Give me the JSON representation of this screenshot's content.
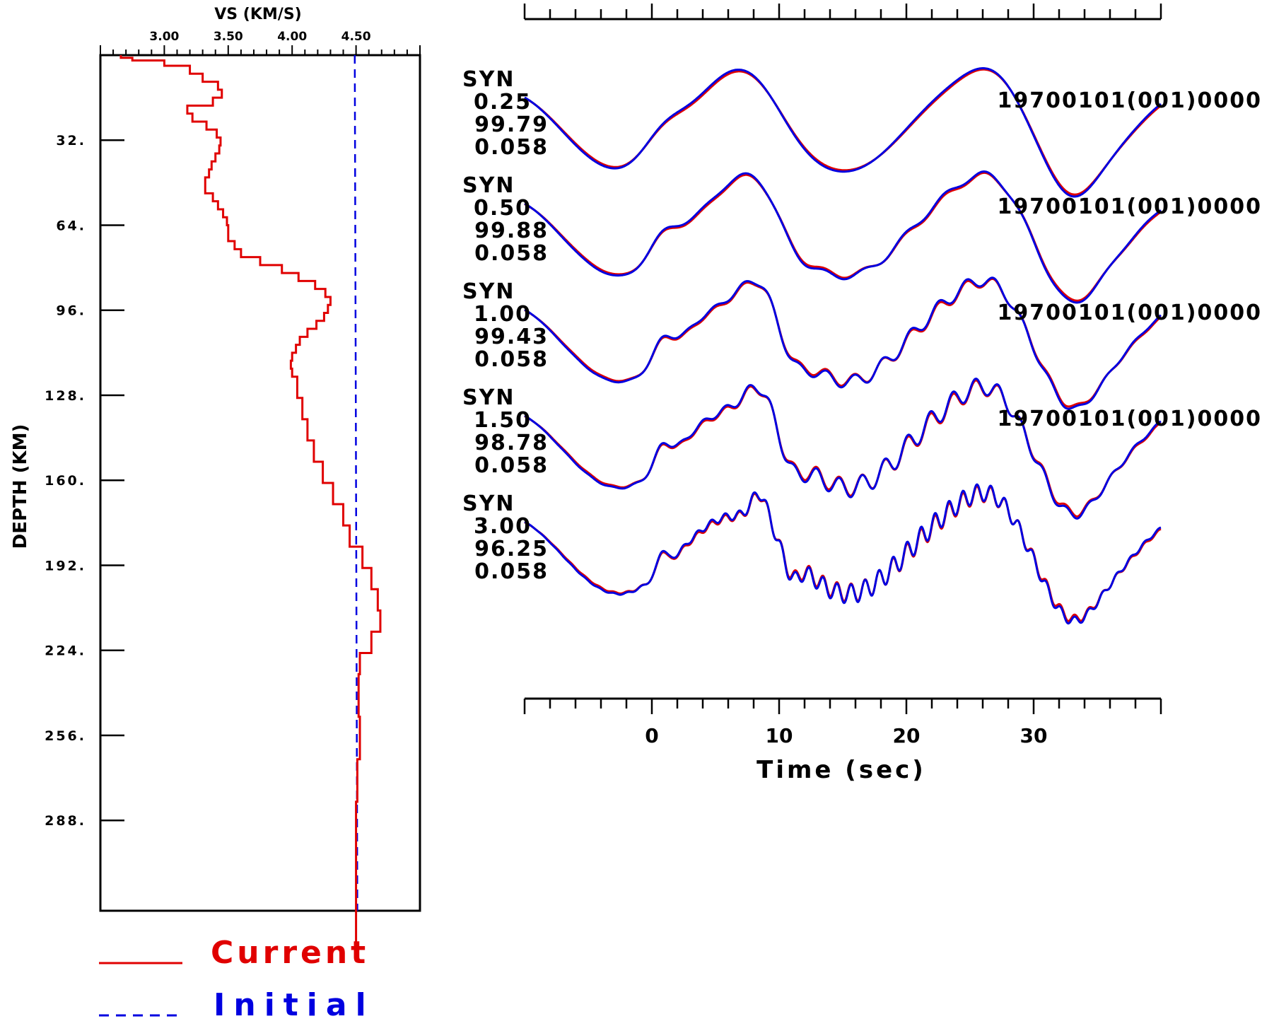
{
  "chart_data": [
    {
      "type": "line",
      "panel": "velocity-profile",
      "xlabel": "VS (KM/S)",
      "ylabel": "DEPTH (KM)",
      "xlim": [
        2.5,
        5.0
      ],
      "ylim": [
        322,
        0
      ],
      "x_ticks": [
        "3.00",
        "3.50",
        "4.00",
        "4.50"
      ],
      "x_tick_values": [
        3.0,
        3.5,
        4.0,
        4.5
      ],
      "y_ticks": [
        "32.",
        "64.",
        "96.",
        "128.",
        "160.",
        "192.",
        "224.",
        "256.",
        "288."
      ],
      "y_tick_values": [
        32,
        64,
        96,
        128,
        160,
        192,
        224,
        256,
        288
      ],
      "legend": [
        "Current",
        "Initial"
      ],
      "legend_position": "bottom-left",
      "colors": {
        "current": "#e00000",
        "initial": "#0000e0"
      },
      "series": [
        {
          "name": "Current",
          "style": "solid",
          "vs": [
            2.66,
            2.75,
            3.0,
            3.2,
            3.3,
            3.42,
            3.45,
            3.38,
            3.18,
            3.22,
            3.33,
            3.41,
            3.44,
            3.43,
            3.4,
            3.37,
            3.35,
            3.32,
            3.32,
            3.38,
            3.42,
            3.46,
            3.49,
            3.5,
            3.5,
            3.55,
            3.6,
            3.75,
            3.92,
            4.05,
            4.18,
            4.26,
            4.3,
            4.28,
            4.25,
            4.19,
            4.12,
            4.06,
            4.03,
            4.0,
            3.99,
            4.0,
            4.04,
            4.08,
            4.12,
            4.17,
            4.24,
            4.32,
            4.4,
            4.45,
            4.55,
            4.62,
            4.67,
            4.69,
            4.62,
            4.53,
            4.52,
            4.52,
            4.53,
            4.51,
            4.5
          ],
          "thickness": [
            1,
            1,
            2,
            3,
            3,
            3,
            3,
            3,
            3,
            3,
            3,
            3,
            3,
            3,
            3,
            3,
            3,
            3,
            3,
            3,
            3,
            3,
            3,
            3,
            3,
            3,
            3,
            3,
            3,
            3,
            3,
            3,
            3,
            3,
            3,
            3,
            3,
            3,
            3,
            3,
            3,
            3,
            8,
            8,
            8,
            8,
            8,
            8,
            8,
            8,
            8,
            8,
            8,
            8,
            8,
            8,
            8,
            8,
            16,
            16,
            56
          ]
        },
        {
          "name": "Initial",
          "style": "dashed",
          "vs_top": 4.49,
          "vs_bottom": 4.51,
          "depth_range": [
            0,
            322
          ]
        }
      ]
    },
    {
      "type": "line",
      "panel": "waveforms",
      "xlabel": "Time (sec)",
      "xlim": [
        -10,
        40
      ],
      "x_ticks": [
        "0",
        "10",
        "20",
        "30"
      ],
      "x_tick_values": [
        0,
        10,
        20,
        30
      ],
      "colors": {
        "observed": "#e00000",
        "predicted": "#0000e0"
      },
      "traces": [
        {
          "label": "SYN",
          "period": "0.25",
          "fit": "99.79",
          "amp": "0.058",
          "date": "19700101(001)0000",
          "offset": 0,
          "freq": 0.6
        },
        {
          "label": "SYN",
          "period": "0.50",
          "fit": "99.88",
          "amp": "0.058",
          "date": "19700101(001)0000",
          "offset": 1,
          "freq": 0.9
        },
        {
          "label": "SYN",
          "period": "1.00",
          "fit": "99.43",
          "amp": "0.058",
          "date": "19700101(001)0000",
          "offset": 2,
          "freq": 1.3
        },
        {
          "label": "SYN",
          "period": "1.50",
          "fit": "98.78",
          "amp": "0.058",
          "date": "19700101(001)0000",
          "offset": 3,
          "freq": 1.6
        },
        {
          "label": "SYN",
          "period": "3.00",
          "fit": "96.25",
          "amp": "0.058",
          "date": "",
          "offset": 4,
          "freq": 2.6
        }
      ]
    }
  ]
}
